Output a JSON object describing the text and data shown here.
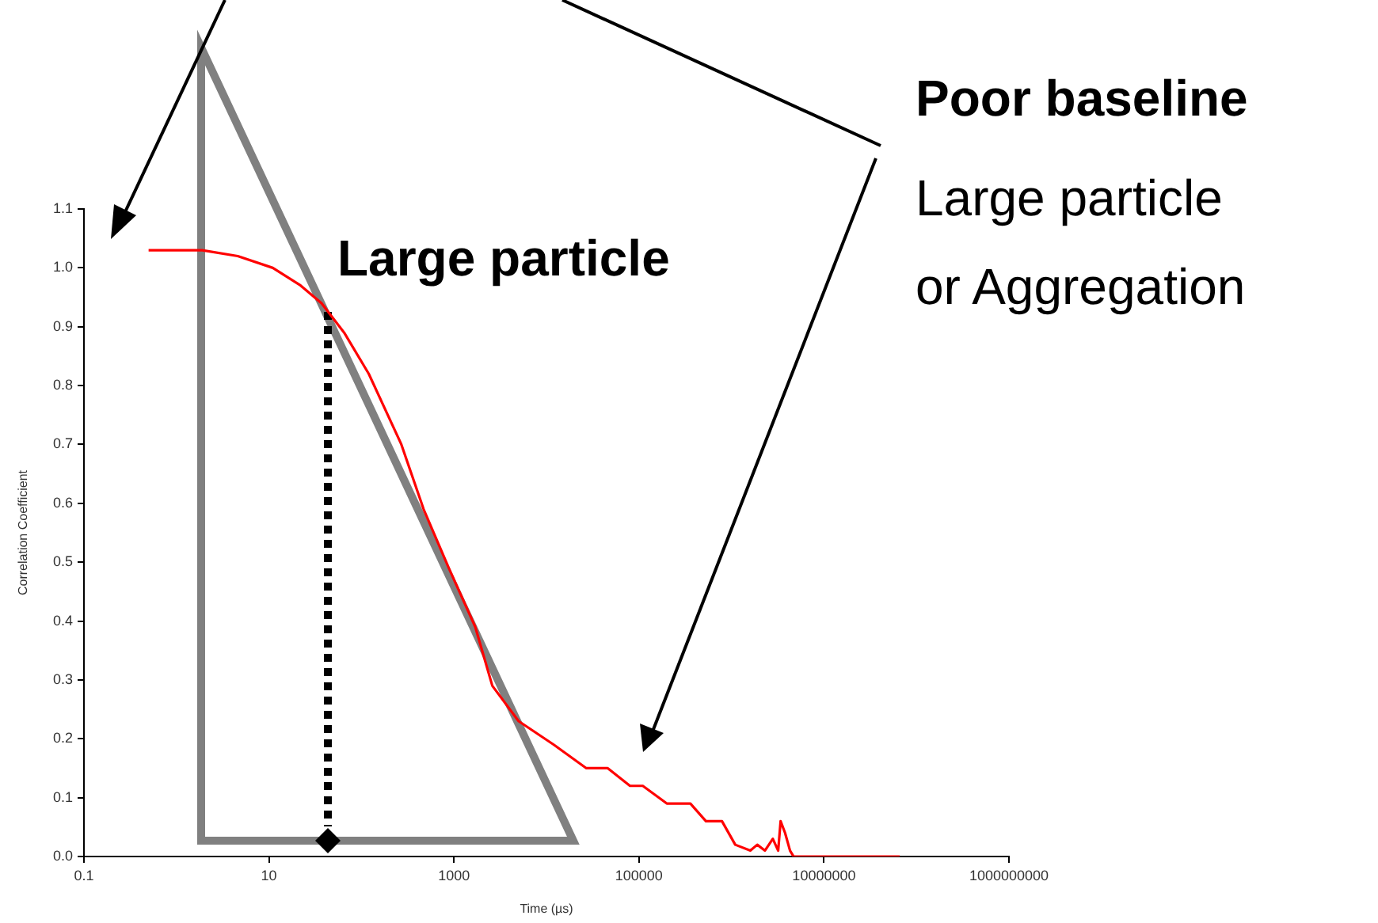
{
  "chart_data": {
    "type": "line",
    "xlabel": "Time (µs)",
    "ylabel": "Correlation Coefficient",
    "log": "x",
    "xlim": [
      0.1,
      1000000000
    ],
    "xticks": [
      0.1,
      10,
      1000,
      100000,
      10000000,
      1000000000
    ],
    "ylim": [
      0,
      1.1
    ],
    "yticks": [
      {
        "value": 0,
        "label": "0.0"
      },
      0.1,
      0.2,
      0.3,
      0.4,
      0.5,
      0.6,
      0.7,
      0.8,
      0.9,
      {
        "value": 1,
        "label": "1.0"
      },
      1.1
    ],
    "grid": false,
    "legend": false,
    "marker": "none",
    "line_style": "solid",
    "annotations": [
      "Large particle",
      "Poor baseline",
      "Large particle or Aggregation"
    ],
    "series": [
      {
        "color": "#ff0000",
        "x": [
          0.5,
          1.9,
          4.6,
          11,
          22,
          37,
          65,
          120,
          270,
          470,
          880,
          1700,
          2600,
          5000,
          12000,
          27000,
          46000,
          80000,
          110000,
          200000,
          360000,
          530000,
          790000,
          1100000,
          1600000,
          1900000,
          2300000,
          2800000,
          3200000,
          3400000,
          3800000,
          4300000,
          4700000,
          66000000
        ],
        "values": [
          1.03,
          1.03,
          1.02,
          1.0,
          0.97,
          0.94,
          0.89,
          0.82,
          0.7,
          0.59,
          0.49,
          0.39,
          0.29,
          0.23,
          0.19,
          0.15,
          0.15,
          0.12,
          0.12,
          0.09,
          0.09,
          0.06,
          0.06,
          0.02,
          0.01,
          0.02,
          0.01,
          0.03,
          0.01,
          0.06,
          0.04,
          0.01,
          0,
          0
        ]
      }
    ]
  }
}
